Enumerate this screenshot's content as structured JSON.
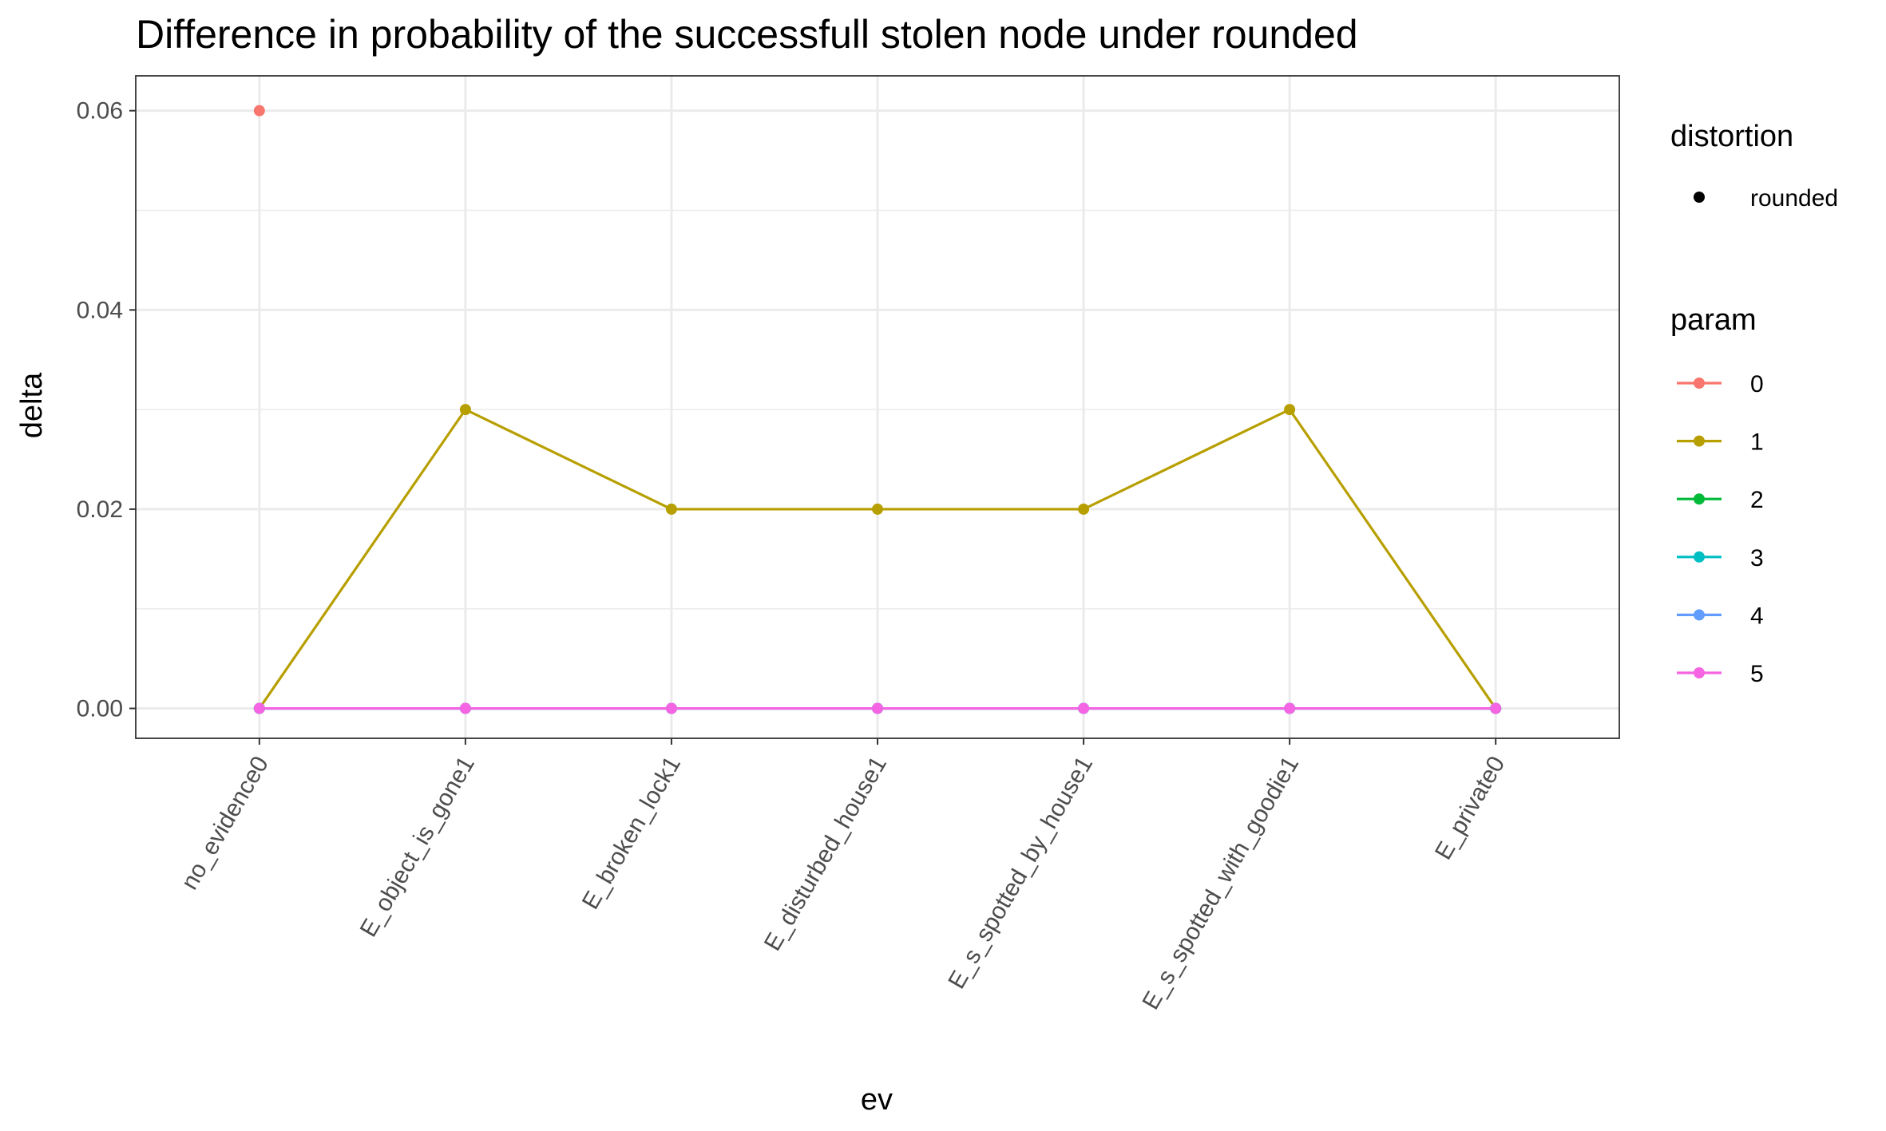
{
  "chart_data": {
    "type": "line",
    "title": "Difference in probability of the successfull stolen node under rounded",
    "xlabel": "ev",
    "ylabel": "delta",
    "categories": [
      "no_evidence0",
      "E_object_is_gone1",
      "E_broken_lock1",
      "E_disturbed_house1",
      "E_s_spotted_by_house1",
      "E_s_spotted_with_goodie1",
      "E_private0"
    ],
    "y_ticks": [
      "0.00",
      "0.02",
      "0.04",
      "0.06"
    ],
    "ylim": [
      -0.003,
      0.0635
    ],
    "grid": true,
    "legend_position": "right",
    "legends": {
      "shape": {
        "title": "distortion",
        "entries": [
          "rounded"
        ]
      },
      "color": {
        "title": "param"
      }
    },
    "series": [
      {
        "name": "0",
        "color": "#F8766D",
        "values": [
          0.06,
          null,
          null,
          null,
          null,
          null,
          null
        ]
      },
      {
        "name": "1",
        "color": "#B79F00",
        "values": [
          0,
          0.03,
          0.02,
          0.02,
          0.02,
          0.03,
          0
        ]
      },
      {
        "name": "2",
        "color": "#00BA38",
        "values": [
          0,
          0,
          0,
          0,
          0,
          0,
          0
        ]
      },
      {
        "name": "3",
        "color": "#00BFC4",
        "values": [
          0,
          0,
          0,
          0,
          0,
          0,
          0
        ]
      },
      {
        "name": "4",
        "color": "#619CFF",
        "values": [
          0,
          0,
          0,
          0,
          0,
          0,
          0
        ]
      },
      {
        "name": "5",
        "color": "#F564E3",
        "values": [
          0,
          0,
          0,
          0,
          0,
          0,
          0
        ]
      }
    ]
  }
}
